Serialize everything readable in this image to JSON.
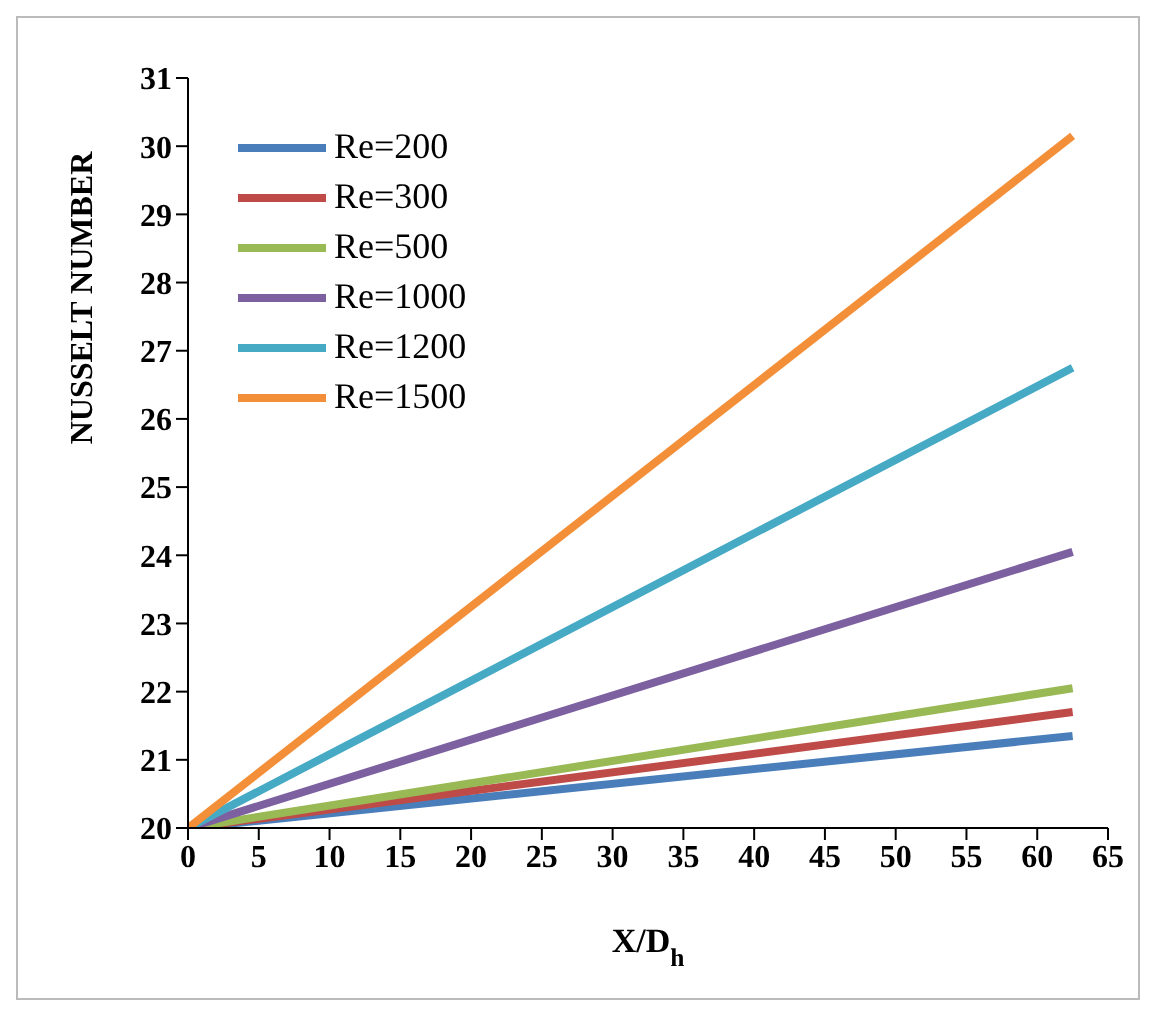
{
  "chart_data": {
    "type": "line",
    "xlabel": "X/D$_{h}$",
    "ylabel": "NUSSELT NUMBER",
    "x": [
      0,
      62.5
    ],
    "series": [
      {
        "name": "Re=200",
        "color": "#4a7ebb",
        "values": [
          20,
          21.35
        ]
      },
      {
        "name": "Re=300",
        "color": "#be4b48",
        "values": [
          20,
          21.7
        ]
      },
      {
        "name": "Re=500",
        "color": "#98b954",
        "values": [
          20,
          22.05
        ]
      },
      {
        "name": "Re=1000",
        "color": "#7d60a0",
        "values": [
          20,
          24.05
        ]
      },
      {
        "name": "Re=1200",
        "color": "#46aac5",
        "values": [
          20,
          26.75
        ]
      },
      {
        "name": "Re=1500",
        "color": "#f38f38",
        "values": [
          20,
          30.15
        ]
      }
    ],
    "xlim": [
      0,
      65
    ],
    "xticks": [
      0,
      5,
      10,
      15,
      20,
      25,
      30,
      35,
      40,
      45,
      50,
      55,
      60,
      65
    ],
    "ylim": [
      20,
      31
    ],
    "yticks": [
      20,
      21,
      22,
      23,
      24,
      25,
      26,
      27,
      28,
      29,
      30,
      31
    ],
    "grid": false,
    "legend": "top left",
    "marker": "none",
    "line_style": "solid"
  }
}
